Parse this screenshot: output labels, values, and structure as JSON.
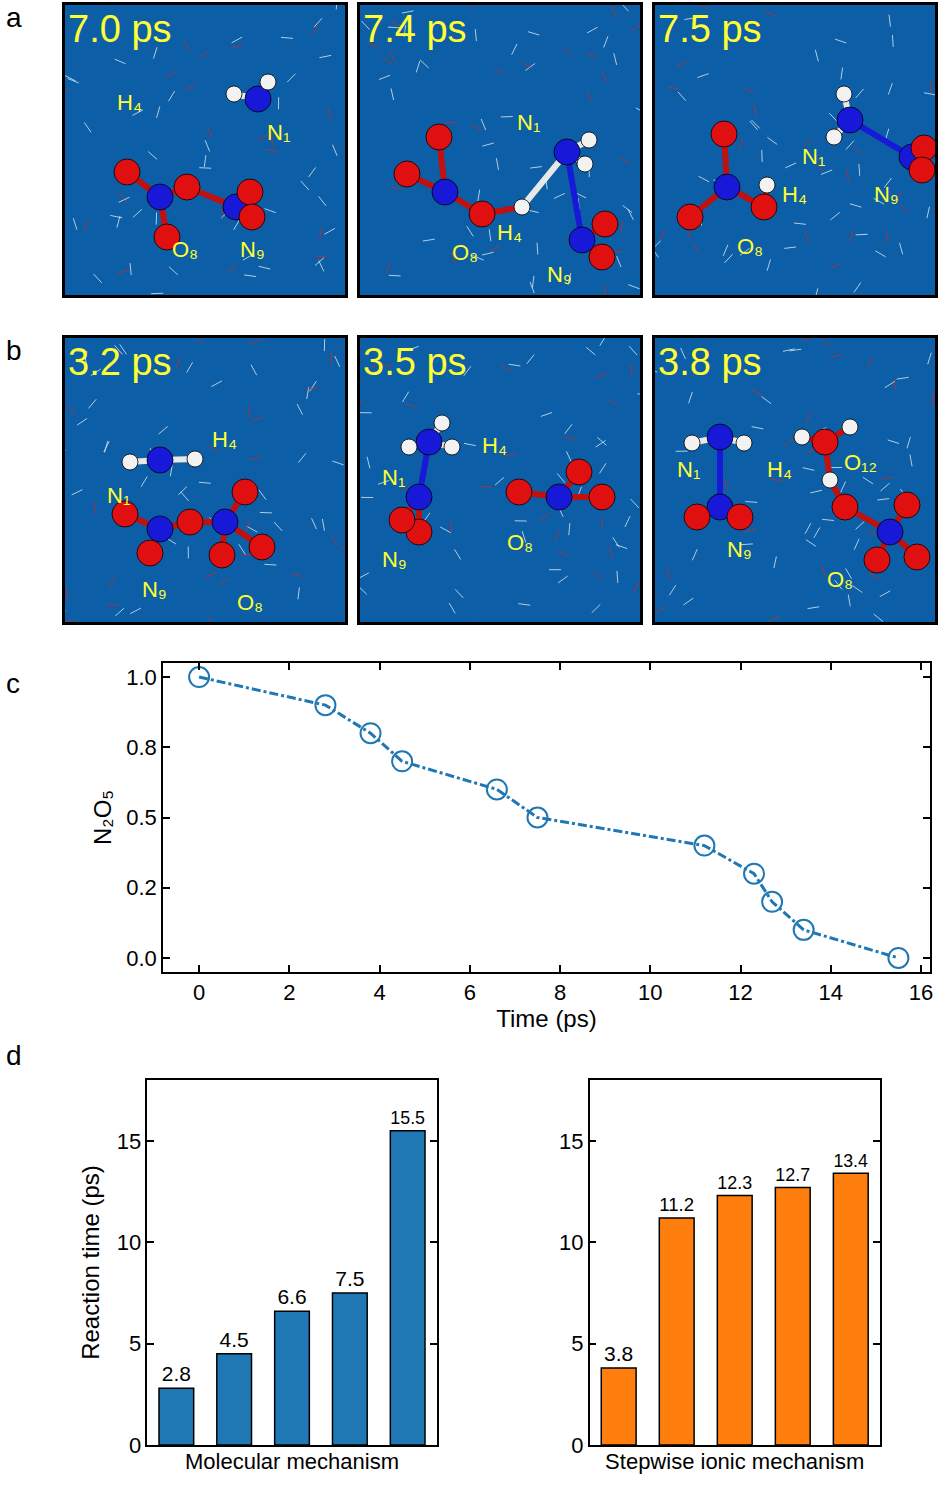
{
  "panel_letters": [
    "a",
    "b",
    "c",
    "d"
  ],
  "snapshots": [
    {
      "frames": [
        {
          "time": "7.0 ps",
          "atoms": [
            "H₄",
            "N₁",
            "O₈",
            "N₉"
          ]
        },
        {
          "time": "7.4 ps",
          "atoms": [
            "N₁",
            "O₈",
            "H₄",
            "N₉"
          ]
        },
        {
          "time": "7.5 ps",
          "atoms": [
            "N₁",
            "N₉",
            "H₄",
            "O₈"
          ]
        }
      ]
    },
    {
      "frames": [
        {
          "time": "3.2 ps",
          "atoms": [
            "N₁",
            "H₄",
            "N₉",
            "O₈"
          ]
        },
        {
          "time": "3.5 ps",
          "atoms": [
            "N₁",
            "H₄",
            "N₉",
            "O₈"
          ]
        },
        {
          "time": "3.8 ps",
          "atoms": [
            "N₁",
            "H₄",
            "O₁₂",
            "N₉",
            "O₈"
          ]
        }
      ]
    }
  ],
  "chart_data": [
    {
      "type": "line",
      "x": [
        0,
        2.8,
        3.8,
        4.5,
        6.6,
        7.5,
        11.2,
        12.3,
        12.7,
        13.4,
        15.5
      ],
      "values": [
        1.0,
        0.9,
        0.8,
        0.7,
        0.6,
        0.5,
        0.4,
        0.3,
        0.2,
        0.1,
        0.0
      ],
      "x_label": "Time (ps)",
      "y_label": "N₂O₅",
      "xlim": [
        -0.8,
        16.2
      ],
      "ylim": [
        -0.05,
        1.05
      ],
      "xticks": [
        0,
        2,
        4,
        6,
        8,
        10,
        12,
        14,
        16
      ],
      "yticks": [
        {
          "value": 0,
          "label": "0.0"
        },
        {
          "value": 0.25,
          "label": "0.2"
        },
        {
          "value": 0.5,
          "label": "0.5"
        },
        {
          "value": 0.75,
          "label": "0.8"
        },
        {
          "value": 1,
          "label": "1.0"
        }
      ],
      "color": "#1f77b4",
      "marker": "open circle",
      "line_style": "dashdot"
    },
    {
      "type": "bar",
      "categories": [
        null,
        null,
        null,
        null,
        null
      ],
      "values": [
        2.8,
        4.5,
        6.6,
        7.5,
        15.5
      ],
      "x_label": "Molecular mechanism",
      "y_label": "Reaction time (ps)",
      "ylim": [
        0,
        18
      ],
      "yticks": [
        0,
        5,
        10,
        15
      ],
      "color": "#1f77b4",
      "data_labels": true,
      "tick_labels": "y"
    },
    {
      "type": "bar",
      "categories": [
        null,
        null,
        null,
        null,
        null
      ],
      "values": [
        3.8,
        11.2,
        12.3,
        12.7,
        13.4
      ],
      "x_label": "Stepwise ionic mechanism",
      "ylim": [
        0,
        18
      ],
      "yticks": [
        0,
        5,
        10,
        15
      ],
      "color": "#ff7f0e",
      "data_labels": true,
      "tick_labels": "y"
    }
  ]
}
